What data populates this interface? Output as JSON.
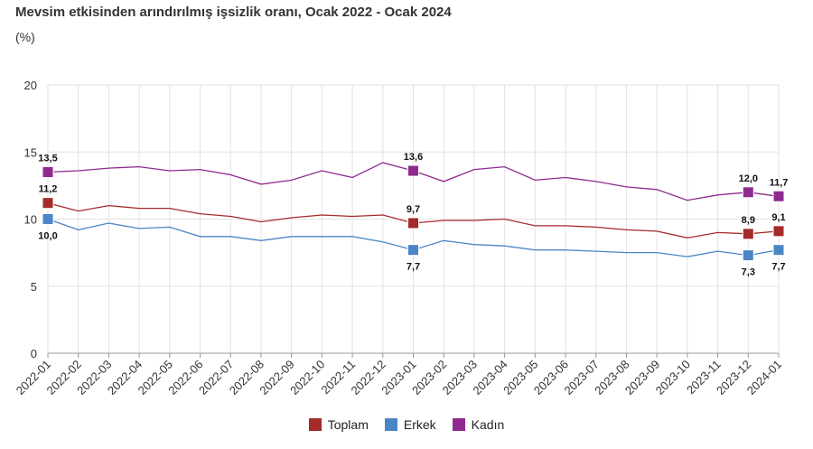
{
  "chart_data": {
    "type": "line",
    "title": "Mevsim etkisinden arındırılmış işsizlik oranı, Ocak 2022 - Ocak 2024",
    "subtitle": "(%)",
    "ylim": [
      0,
      20
    ],
    "yticks": [
      "0",
      "5",
      "10",
      "15",
      "20"
    ],
    "grid": true,
    "legend_position": "bottom-center",
    "categories": [
      "2022-01",
      "2022-02",
      "2022-03",
      "2022-04",
      "2022-05",
      "2022-06",
      "2022-07",
      "2022-08",
      "2022-09",
      "2022-10",
      "2022-11",
      "2022-12",
      "2023-01",
      "2023-02",
      "2023-03",
      "2023-04",
      "2023-05",
      "2023-06",
      "2023-07",
      "2023-08",
      "2023-09",
      "2023-10",
      "2023-11",
      "2023-12",
      "2024-01"
    ],
    "series": [
      {
        "name": "Toplam",
        "color": "#a52a2a",
        "values": [
          11.2,
          10.6,
          11.0,
          10.8,
          10.8,
          10.4,
          10.2,
          9.8,
          10.1,
          10.3,
          10.2,
          10.3,
          9.7,
          9.9,
          9.9,
          10.0,
          9.5,
          9.5,
          9.4,
          9.2,
          9.1,
          8.6,
          9.0,
          8.9,
          9.1
        ],
        "markers": [
          0,
          12,
          23,
          24
        ],
        "labels": {
          "0": "11,2",
          "12": "9,7",
          "23": "8,9",
          "24": "9,1"
        }
      },
      {
        "name": "Erkek",
        "color": "#4a86c5",
        "values": [
          10.0,
          9.2,
          9.7,
          9.3,
          9.4,
          8.7,
          8.7,
          8.4,
          8.7,
          8.7,
          8.7,
          8.3,
          7.7,
          8.4,
          8.1,
          8.0,
          7.7,
          7.7,
          7.6,
          7.5,
          7.5,
          7.2,
          7.6,
          7.3,
          7.7
        ],
        "markers": [
          0,
          12,
          23,
          24
        ],
        "labels": {
          "0": "10,0",
          "12": "7,7",
          "23": "7,3",
          "24": "7,7"
        }
      },
      {
        "name": "Kadın",
        "color": "#8e2a8f",
        "values": [
          13.5,
          13.6,
          13.8,
          13.9,
          13.6,
          13.7,
          13.3,
          12.6,
          12.9,
          13.6,
          13.1,
          14.2,
          13.6,
          12.8,
          13.7,
          13.9,
          12.9,
          13.1,
          12.8,
          12.4,
          12.2,
          11.4,
          11.8,
          12.0,
          11.7
        ],
        "markers": [
          0,
          12,
          23,
          24
        ],
        "labels": {
          "0": "13,5",
          "12": "13,6",
          "23": "12,0",
          "24": "11,7"
        }
      }
    ]
  }
}
